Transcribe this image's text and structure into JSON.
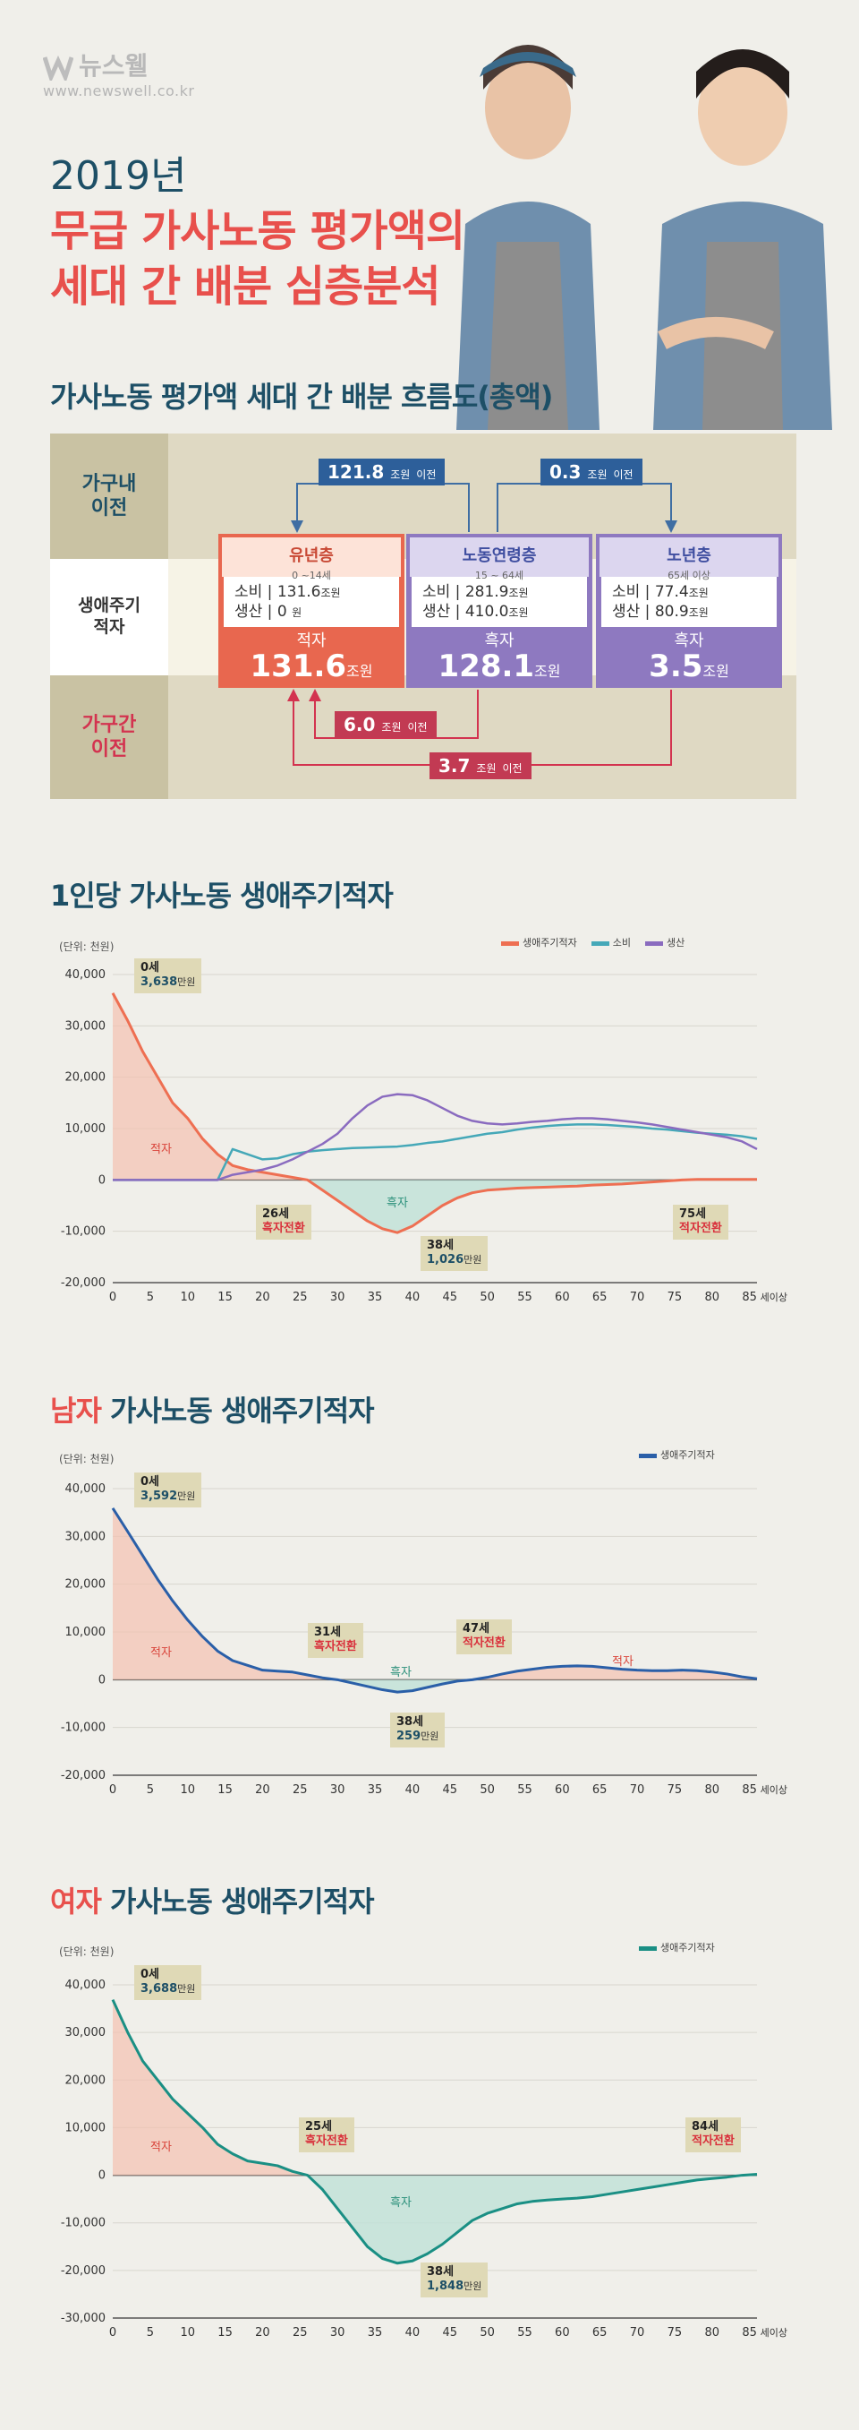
{
  "header": {
    "logo": "뉴스웰",
    "url": "www.newswell.co.kr",
    "year": "2019년",
    "title_line1": "무급 가사노동 평가액의",
    "title_line2": "세대 간 배분 심층분석"
  },
  "flow": {
    "title": "가사노동 평가액 세대 간 배분 흐름도(총액)",
    "row_labels": {
      "intra": "가구내\n이전",
      "lifecycle": "생애주기\n적자",
      "inter": "가구간\n이전"
    },
    "unit_won": "조원",
    "transfer_label": "이전",
    "transfers": {
      "intra_worker_to_youth": "121.8",
      "intra_worker_to_elder": "0.3",
      "inter_worker_to_youth": "6.0",
      "inter_elder_to_youth": "3.7"
    },
    "groups": [
      {
        "name": "유년층",
        "age": "0 ~14세",
        "consumption_label": "소비",
        "consumption": "131.6",
        "production_label": "생산",
        "production": "0",
        "production_unit": "원",
        "balance_label": "적자",
        "balance": "131.6",
        "color": "#e8674f"
      },
      {
        "name": "노동연령층",
        "age": "15 ~ 64세",
        "consumption_label": "소비",
        "consumption": "281.9",
        "production_label": "생산",
        "production": "410.0",
        "production_unit": "조원",
        "balance_label": "흑자",
        "balance": "128.1",
        "color": "#8e79c0"
      },
      {
        "name": "노년층",
        "age": "65세 이상",
        "consumption_label": "소비",
        "consumption": "77.4",
        "production_label": "생산",
        "production": "80.9",
        "production_unit": "조원",
        "balance_label": "흑자",
        "balance": "3.5",
        "color": "#8e79c0"
      }
    ]
  },
  "labels": {
    "unit": "(단위: 천원)",
    "deficit": "적자",
    "surplus": "흑자",
    "age_suffix": "세이상",
    "man_won": "만원"
  },
  "chart_data": [
    {
      "type": "line",
      "title": "1인당 가사노동 생애주기적자",
      "title_accent": "",
      "title_rest": "1인당 가사노동 생애주기적자",
      "ylim": [
        -20000,
        40000
      ],
      "yticks": [
        "40,000",
        "30,000",
        "20,000",
        "10,000",
        "0",
        "-10,000",
        "-20,000"
      ],
      "xticks": [
        "0",
        "5",
        "10",
        "15",
        "20",
        "25",
        "30",
        "35",
        "40",
        "45",
        "50",
        "55",
        "60",
        "65",
        "70",
        "75",
        "80",
        "85"
      ],
      "x": [
        0,
        2,
        4,
        6,
        8,
        10,
        12,
        14,
        16,
        18,
        20,
        22,
        24,
        26,
        28,
        30,
        32,
        34,
        36,
        38,
        40,
        42,
        44,
        46,
        48,
        50,
        52,
        54,
        56,
        58,
        60,
        62,
        64,
        66,
        68,
        70,
        72,
        74,
        76,
        78,
        80,
        82,
        84,
        86
      ],
      "series": [
        {
          "name": "생애주기적자",
          "color": "#ee6f52",
          "values": [
            36380,
            31000,
            25000,
            20000,
            15000,
            12000,
            8000,
            5000,
            2800,
            2000,
            1500,
            1000,
            500,
            0,
            -2000,
            -4000,
            -6000,
            -8000,
            -9500,
            -10260,
            -9000,
            -7000,
            -5000,
            -3500,
            -2500,
            -2000,
            -1800,
            -1600,
            -1500,
            -1400,
            -1300,
            -1200,
            -1000,
            -900,
            -800,
            -600,
            -400,
            -200,
            0,
            100,
            100,
            100,
            100,
            100
          ]
        },
        {
          "name": "소비",
          "color": "#45a8b8",
          "values": [
            0,
            0,
            0,
            0,
            0,
            0,
            0,
            0,
            6000,
            5000,
            4000,
            4200,
            5000,
            5500,
            5800,
            6000,
            6200,
            6300,
            6400,
            6500,
            6800,
            7200,
            7500,
            8000,
            8500,
            9000,
            9300,
            9800,
            10200,
            10500,
            10700,
            10800,
            10800,
            10700,
            10500,
            10300,
            10000,
            9800,
            9500,
            9200,
            9000,
            8800,
            8500,
            8000
          ]
        },
        {
          "name": "생산",
          "color": "#8a6bbf",
          "values": [
            0,
            0,
            0,
            0,
            0,
            0,
            0,
            0,
            1000,
            1500,
            2000,
            2800,
            4000,
            5500,
            7000,
            9000,
            12000,
            14500,
            16200,
            16700,
            16500,
            15500,
            14000,
            12500,
            11500,
            11000,
            10800,
            11000,
            11300,
            11500,
            11800,
            12000,
            12000,
            11800,
            11500,
            11200,
            10800,
            10300,
            9800,
            9300,
            8800,
            8300,
            7500,
            6000
          ]
        }
      ],
      "callouts": [
        {
          "age": "0세",
          "value": "3,638"
        },
        {
          "age": "26세",
          "label": "흑자전환"
        },
        {
          "age": "38세",
          "value": "1,026"
        },
        {
          "age": "75세",
          "label": "적자전환"
        }
      ]
    },
    {
      "type": "line",
      "title": "남자 가사노동 생애주기적자",
      "title_accent": "남자",
      "title_rest": " 가사노동 생애주기적자",
      "ylim": [
        -20000,
        40000
      ],
      "yticks": [
        "40,000",
        "30,000",
        "20,000",
        "10,000",
        "0",
        "-10,000",
        "-20,000"
      ],
      "xticks": [
        "0",
        "5",
        "10",
        "15",
        "20",
        "25",
        "30",
        "35",
        "40",
        "45",
        "50",
        "55",
        "60",
        "65",
        "70",
        "75",
        "80",
        "85"
      ],
      "x": [
        0,
        2,
        4,
        6,
        8,
        10,
        12,
        14,
        16,
        18,
        20,
        22,
        24,
        26,
        28,
        30,
        32,
        34,
        36,
        38,
        40,
        42,
        44,
        46,
        48,
        50,
        52,
        54,
        56,
        58,
        60,
        62,
        64,
        66,
        68,
        70,
        72,
        74,
        76,
        78,
        80,
        82,
        84,
        86
      ],
      "series": [
        {
          "name": "생애주기적자",
          "color": "#2a5fa8",
          "values": [
            35920,
            31000,
            26000,
            21000,
            16500,
            12500,
            9000,
            6000,
            4000,
            3000,
            2000,
            1800,
            1600,
            1000,
            400,
            0,
            -700,
            -1400,
            -2100,
            -2590,
            -2300,
            -1600,
            -900,
            -300,
            0,
            500,
            1200,
            1800,
            2200,
            2600,
            2800,
            2900,
            2800,
            2500,
            2200,
            2000,
            1900,
            1900,
            2000,
            1900,
            1600,
            1200,
            600,
            200
          ]
        }
      ],
      "callouts": [
        {
          "age": "0세",
          "value": "3,592"
        },
        {
          "age": "31세",
          "label": "흑자전환"
        },
        {
          "age": "38세",
          "value": "259"
        },
        {
          "age": "47세",
          "label": "적자전환"
        }
      ]
    },
    {
      "type": "line",
      "title": "여자 가사노동 생애주기적자",
      "title_accent": "여자",
      "title_rest": " 가사노동 생애주기적자",
      "ylim": [
        -30000,
        40000
      ],
      "yticks": [
        "40,000",
        "30,000",
        "20,000",
        "10,000",
        "0",
        "-10,000",
        "-20,000",
        "-30,000"
      ],
      "xticks": [
        "0",
        "5",
        "10",
        "15",
        "20",
        "25",
        "30",
        "35",
        "40",
        "45",
        "50",
        "55",
        "60",
        "65",
        "70",
        "75",
        "80",
        "85"
      ],
      "x": [
        0,
        2,
        4,
        6,
        8,
        10,
        12,
        14,
        16,
        18,
        20,
        22,
        24,
        26,
        28,
        30,
        32,
        34,
        36,
        38,
        40,
        42,
        44,
        46,
        48,
        50,
        52,
        54,
        56,
        58,
        60,
        62,
        64,
        66,
        68,
        70,
        72,
        74,
        76,
        78,
        80,
        82,
        84,
        86
      ],
      "series": [
        {
          "name": "생애주기적자",
          "color": "#1a8f84",
          "values": [
            36880,
            30000,
            24000,
            20000,
            16000,
            13000,
            10000,
            6500,
            4500,
            3000,
            2500,
            2000,
            800,
            0,
            -3000,
            -7000,
            -11000,
            -15000,
            -17500,
            -18480,
            -18000,
            -16500,
            -14500,
            -12000,
            -9500,
            -8000,
            -7000,
            -6000,
            -5500,
            -5200,
            -5000,
            -4800,
            -4500,
            -4000,
            -3500,
            -3000,
            -2500,
            -2000,
            -1500,
            -1000,
            -700,
            -400,
            0,
            200
          ]
        }
      ],
      "callouts": [
        {
          "age": "0세",
          "value": "3,688"
        },
        {
          "age": "25세",
          "label": "흑자전환"
        },
        {
          "age": "38세",
          "value": "1,848"
        },
        {
          "age": "84세",
          "label": "적자전환"
        }
      ]
    }
  ]
}
